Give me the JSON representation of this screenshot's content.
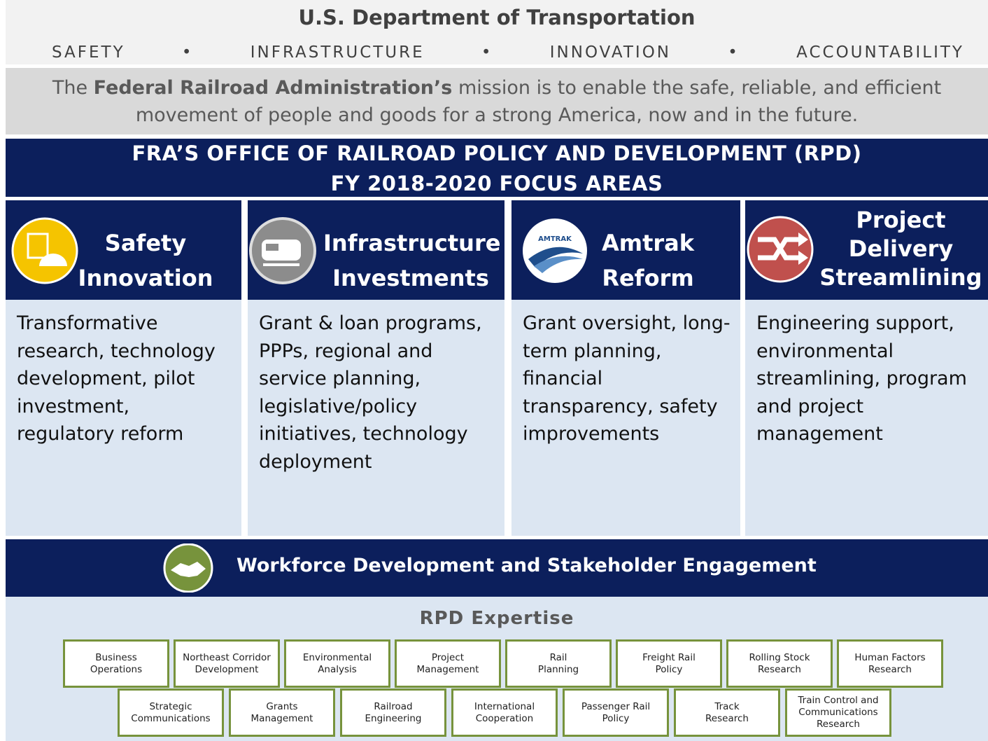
{
  "header": {
    "title": "U.S. Department of Transportation",
    "values": [
      "SAFETY",
      "INFRASTRUCTURE",
      "INNOVATION",
      "ACCOUNTABILITY"
    ]
  },
  "mission": {
    "before": "The",
    "bold": "Federal Railroad Administration’s",
    "after": "mission is to enable the safe, reliable, and efficient movement of people and goods for a strong America, now and in the future."
  },
  "banner": {
    "lines": [
      "FRA’S OFFICE OF RAILROAD POLICY AND DEVELOPMENT (RPD)",
      "FY 2018-2020 FOCUS AREAS"
    ]
  },
  "focus_areas": [
    {
      "title_lines": [
        "Safety",
        "Innovation"
      ],
      "description": "Transformative research, technology development, pilot investment, regulatory reform"
    },
    {
      "title_lines": [
        "Infrastructure",
        "Investments"
      ],
      "description": "Grant & loan programs, PPPs, regional and service planning, legislative/policy initiatives, technology deployment"
    },
    {
      "title_lines": [
        "Amtrak",
        "Reform"
      ],
      "description": "Grant oversight, long-term planning, financial transparency, safety improvements"
    },
    {
      "title_lines": [
        "Project",
        "Delivery",
        "Streamlining"
      ],
      "description": "Engineering support, environmental streamlining, program and project management"
    }
  ],
  "amtrak_logo": "AMTRAK",
  "workforce": {
    "title": "Workforce Development and Stakeholder Engagement"
  },
  "expertise": {
    "title": "RPD Expertise",
    "rows": [
      [
        [
          "Business",
          "Operations"
        ],
        [
          "Northeast Corridor",
          "Development"
        ],
        [
          "Environmental",
          "Analysis"
        ],
        [
          "Project",
          "Management"
        ],
        [
          "Rail",
          "Planning"
        ],
        [
          "Freight Rail",
          "Policy"
        ],
        [
          "Rolling Stock",
          "Research"
        ],
        [
          "Human Factors",
          "Research"
        ]
      ],
      [
        [
          "Strategic",
          "Communications"
        ],
        [
          "Grants",
          "Management"
        ],
        [
          "Railroad",
          "Engineering"
        ],
        [
          "International",
          "Cooperation"
        ],
        [
          "Passenger Rail",
          "Policy"
        ],
        [
          "Track",
          "Research"
        ],
        [
          "Train Control and",
          "Communications",
          "Research"
        ]
      ]
    ]
  }
}
